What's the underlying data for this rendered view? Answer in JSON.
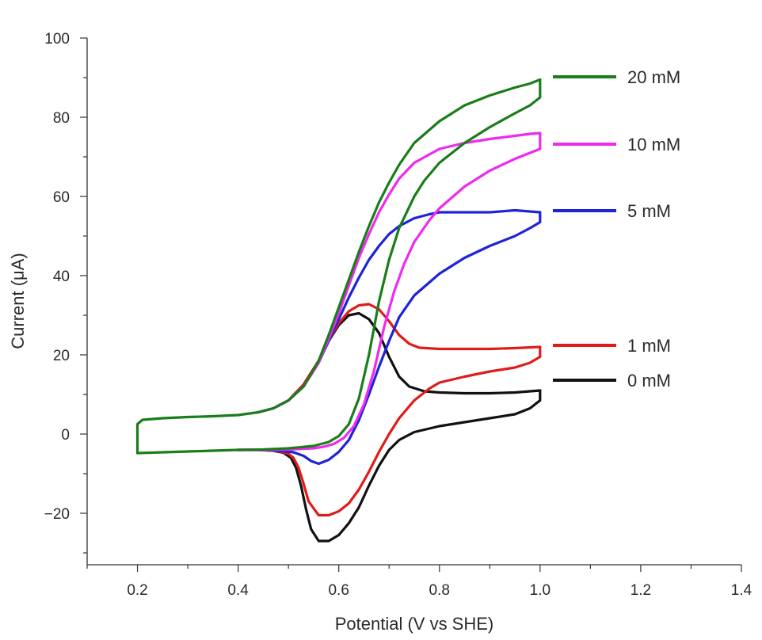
{
  "chart_data": {
    "type": "line",
    "title": "",
    "xlabel": "Potential (V vs SHE)",
    "ylabel": "Current (μA)",
    "xlim": [
      0.1,
      1.4
    ],
    "ylim": [
      -33,
      100
    ],
    "xticks": [
      0.2,
      0.4,
      0.6,
      0.8,
      1.0,
      1.2,
      1.4
    ],
    "xtick_labels": [
      "0.2",
      "0.4",
      "0.6",
      "0.8",
      "1.0",
      "1.2",
      "1.4"
    ],
    "yticks": [
      -20,
      0,
      20,
      40,
      60,
      80,
      100
    ],
    "ytick_labels": [
      "−20",
      "0",
      "20",
      "40",
      "60",
      "80",
      "100"
    ],
    "grid": false,
    "legend_position": "right",
    "series": [
      {
        "name": "20 mM",
        "color": "#1a7d1a",
        "forward": [
          [
            0.2,
            -4.8
          ],
          [
            0.2,
            2.5
          ],
          [
            0.21,
            3.6
          ],
          [
            0.25,
            4.0
          ],
          [
            0.3,
            4.3
          ],
          [
            0.35,
            4.5
          ],
          [
            0.4,
            4.8
          ],
          [
            0.44,
            5.5
          ],
          [
            0.47,
            6.5
          ],
          [
            0.5,
            8.5
          ],
          [
            0.53,
            12.0
          ],
          [
            0.56,
            18.5
          ],
          [
            0.58,
            25.0
          ],
          [
            0.6,
            32.0
          ],
          [
            0.62,
            39.0
          ],
          [
            0.64,
            46.0
          ],
          [
            0.66,
            52.5
          ],
          [
            0.68,
            58.5
          ],
          [
            0.7,
            63.5
          ],
          [
            0.72,
            68.0
          ],
          [
            0.75,
            73.5
          ],
          [
            0.8,
            79.0
          ],
          [
            0.85,
            83.0
          ],
          [
            0.9,
            85.5
          ],
          [
            0.95,
            87.5
          ],
          [
            0.98,
            88.5
          ],
          [
            1.0,
            89.5
          ]
        ],
        "reverse": [
          [
            1.0,
            89.5
          ],
          [
            1.0,
            85.0
          ],
          [
            0.98,
            83.0
          ],
          [
            0.95,
            81.0
          ],
          [
            0.9,
            77.5
          ],
          [
            0.85,
            73.5
          ],
          [
            0.8,
            68.5
          ],
          [
            0.77,
            64.0
          ],
          [
            0.75,
            60.0
          ],
          [
            0.72,
            52.0
          ],
          [
            0.7,
            44.0
          ],
          [
            0.68,
            33.5
          ],
          [
            0.66,
            20.0
          ],
          [
            0.64,
            9.0
          ],
          [
            0.62,
            2.5
          ],
          [
            0.6,
            -0.5
          ],
          [
            0.58,
            -2.0
          ],
          [
            0.55,
            -3.0
          ],
          [
            0.5,
            -3.6
          ],
          [
            0.45,
            -3.9
          ],
          [
            0.4,
            -4.0
          ],
          [
            0.35,
            -4.2
          ],
          [
            0.3,
            -4.4
          ],
          [
            0.25,
            -4.6
          ],
          [
            0.2,
            -4.8
          ]
        ]
      },
      {
        "name": "10 mM",
        "color": "#ee2aee",
        "forward": [
          [
            0.44,
            5.5
          ],
          [
            0.47,
            6.5
          ],
          [
            0.5,
            8.5
          ],
          [
            0.53,
            12.0
          ],
          [
            0.56,
            18.0
          ],
          [
            0.58,
            24.0
          ],
          [
            0.6,
            30.5
          ],
          [
            0.62,
            37.5
          ],
          [
            0.64,
            44.5
          ],
          [
            0.66,
            50.5
          ],
          [
            0.68,
            56.0
          ],
          [
            0.7,
            60.5
          ],
          [
            0.72,
            64.5
          ],
          [
            0.75,
            68.5
          ],
          [
            0.8,
            72.0
          ],
          [
            0.85,
            73.5
          ],
          [
            0.9,
            74.5
          ],
          [
            0.95,
            75.3
          ],
          [
            0.98,
            75.8
          ],
          [
            1.0,
            76.0
          ]
        ],
        "reverse": [
          [
            1.0,
            76.0
          ],
          [
            1.0,
            72.0
          ],
          [
            0.98,
            71.0
          ],
          [
            0.95,
            69.5
          ],
          [
            0.9,
            66.5
          ],
          [
            0.85,
            62.5
          ],
          [
            0.8,
            57.0
          ],
          [
            0.78,
            54.0
          ],
          [
            0.75,
            48.5
          ],
          [
            0.73,
            43.0
          ],
          [
            0.71,
            36.0
          ],
          [
            0.69,
            27.0
          ],
          [
            0.67,
            16.0
          ],
          [
            0.65,
            7.5
          ],
          [
            0.63,
            2.0
          ],
          [
            0.61,
            -1.0
          ],
          [
            0.59,
            -2.5
          ],
          [
            0.57,
            -3.2
          ],
          [
            0.55,
            -3.6
          ],
          [
            0.5,
            -3.9
          ],
          [
            0.45,
            -4.0
          ],
          [
            0.4,
            -4.0
          ]
        ]
      },
      {
        "name": "5 mM",
        "color": "#1e23d8",
        "forward": [
          [
            0.44,
            5.5
          ],
          [
            0.47,
            6.5
          ],
          [
            0.5,
            8.5
          ],
          [
            0.53,
            12.0
          ],
          [
            0.56,
            18.0
          ],
          [
            0.58,
            23.5
          ],
          [
            0.6,
            29.0
          ],
          [
            0.62,
            34.5
          ],
          [
            0.64,
            39.5
          ],
          [
            0.66,
            44.0
          ],
          [
            0.68,
            47.5
          ],
          [
            0.7,
            50.5
          ],
          [
            0.72,
            52.5
          ],
          [
            0.75,
            54.5
          ],
          [
            0.78,
            55.5
          ],
          [
            0.8,
            56.0
          ],
          [
            0.85,
            56.0
          ],
          [
            0.9,
            56.0
          ],
          [
            0.95,
            56.5
          ],
          [
            1.0,
            56.0
          ]
        ],
        "reverse": [
          [
            1.0,
            56.0
          ],
          [
            1.0,
            53.5
          ],
          [
            0.98,
            52.0
          ],
          [
            0.95,
            50.0
          ],
          [
            0.9,
            47.5
          ],
          [
            0.85,
            44.5
          ],
          [
            0.8,
            40.5
          ],
          [
            0.75,
            35.0
          ],
          [
            0.72,
            29.5
          ],
          [
            0.7,
            23.5
          ],
          [
            0.68,
            17.0
          ],
          [
            0.66,
            10.0
          ],
          [
            0.64,
            3.5
          ],
          [
            0.62,
            -1.5
          ],
          [
            0.6,
            -4.5
          ],
          [
            0.58,
            -6.5
          ],
          [
            0.56,
            -7.5
          ],
          [
            0.545,
            -6.8
          ],
          [
            0.53,
            -5.5
          ],
          [
            0.51,
            -4.6
          ],
          [
            0.48,
            -4.2
          ],
          [
            0.45,
            -4.0
          ],
          [
            0.4,
            -4.0
          ]
        ]
      },
      {
        "name": "1 mM",
        "color": "#e01b1b",
        "forward": [
          [
            0.44,
            5.5
          ],
          [
            0.47,
            6.5
          ],
          [
            0.5,
            8.5
          ],
          [
            0.53,
            12.5
          ],
          [
            0.56,
            18.5
          ],
          [
            0.58,
            23.5
          ],
          [
            0.6,
            28.0
          ],
          [
            0.62,
            31.0
          ],
          [
            0.64,
            32.5
          ],
          [
            0.66,
            32.8
          ],
          [
            0.68,
            31.5
          ],
          [
            0.7,
            28.5
          ],
          [
            0.72,
            25.0
          ],
          [
            0.74,
            22.8
          ],
          [
            0.76,
            21.8
          ],
          [
            0.8,
            21.5
          ],
          [
            0.85,
            21.5
          ],
          [
            0.9,
            21.5
          ],
          [
            0.95,
            21.7
          ],
          [
            1.0,
            22.0
          ]
        ],
        "reverse": [
          [
            1.0,
            22.0
          ],
          [
            1.0,
            19.5
          ],
          [
            0.98,
            18.0
          ],
          [
            0.95,
            16.8
          ],
          [
            0.9,
            15.8
          ],
          [
            0.85,
            14.5
          ],
          [
            0.8,
            13.0
          ],
          [
            0.78,
            11.5
          ],
          [
            0.75,
            8.5
          ],
          [
            0.72,
            4.0
          ],
          [
            0.7,
            0.0
          ],
          [
            0.68,
            -4.5
          ],
          [
            0.66,
            -9.5
          ],
          [
            0.64,
            -14.0
          ],
          [
            0.62,
            -17.5
          ],
          [
            0.6,
            -19.5
          ],
          [
            0.58,
            -20.5
          ],
          [
            0.56,
            -20.5
          ],
          [
            0.54,
            -17.0
          ],
          [
            0.53,
            -12.5
          ],
          [
            0.52,
            -8.5
          ],
          [
            0.51,
            -6.0
          ],
          [
            0.5,
            -5.0
          ],
          [
            0.48,
            -4.3
          ],
          [
            0.45,
            -4.0
          ],
          [
            0.4,
            -4.0
          ]
        ]
      },
      {
        "name": "0 mM",
        "color": "#111111",
        "forward": [
          [
            0.44,
            5.5
          ],
          [
            0.47,
            6.5
          ],
          [
            0.5,
            8.5
          ],
          [
            0.53,
            12.5
          ],
          [
            0.56,
            18.5
          ],
          [
            0.58,
            23.5
          ],
          [
            0.6,
            27.5
          ],
          [
            0.62,
            30.0
          ],
          [
            0.64,
            30.5
          ],
          [
            0.66,
            29.0
          ],
          [
            0.68,
            25.5
          ],
          [
            0.7,
            19.5
          ],
          [
            0.72,
            14.5
          ],
          [
            0.74,
            12.0
          ],
          [
            0.77,
            10.8
          ],
          [
            0.8,
            10.5
          ],
          [
            0.85,
            10.3
          ],
          [
            0.9,
            10.3
          ],
          [
            0.95,
            10.5
          ],
          [
            1.0,
            11.0
          ]
        ],
        "reverse": [
          [
            1.0,
            11.0
          ],
          [
            1.0,
            8.5
          ],
          [
            0.98,
            6.5
          ],
          [
            0.95,
            5.0
          ],
          [
            0.9,
            4.0
          ],
          [
            0.85,
            3.0
          ],
          [
            0.8,
            2.0
          ],
          [
            0.75,
            0.5
          ],
          [
            0.72,
            -1.5
          ],
          [
            0.7,
            -4.0
          ],
          [
            0.68,
            -8.0
          ],
          [
            0.66,
            -13.0
          ],
          [
            0.64,
            -18.5
          ],
          [
            0.62,
            -22.5
          ],
          [
            0.6,
            -25.5
          ],
          [
            0.58,
            -27.0
          ],
          [
            0.56,
            -27.0
          ],
          [
            0.545,
            -24.0
          ],
          [
            0.535,
            -19.0
          ],
          [
            0.525,
            -13.0
          ],
          [
            0.515,
            -8.5
          ],
          [
            0.505,
            -6.0
          ],
          [
            0.49,
            -4.7
          ],
          [
            0.47,
            -4.2
          ],
          [
            0.44,
            -4.0
          ]
        ]
      }
    ]
  }
}
